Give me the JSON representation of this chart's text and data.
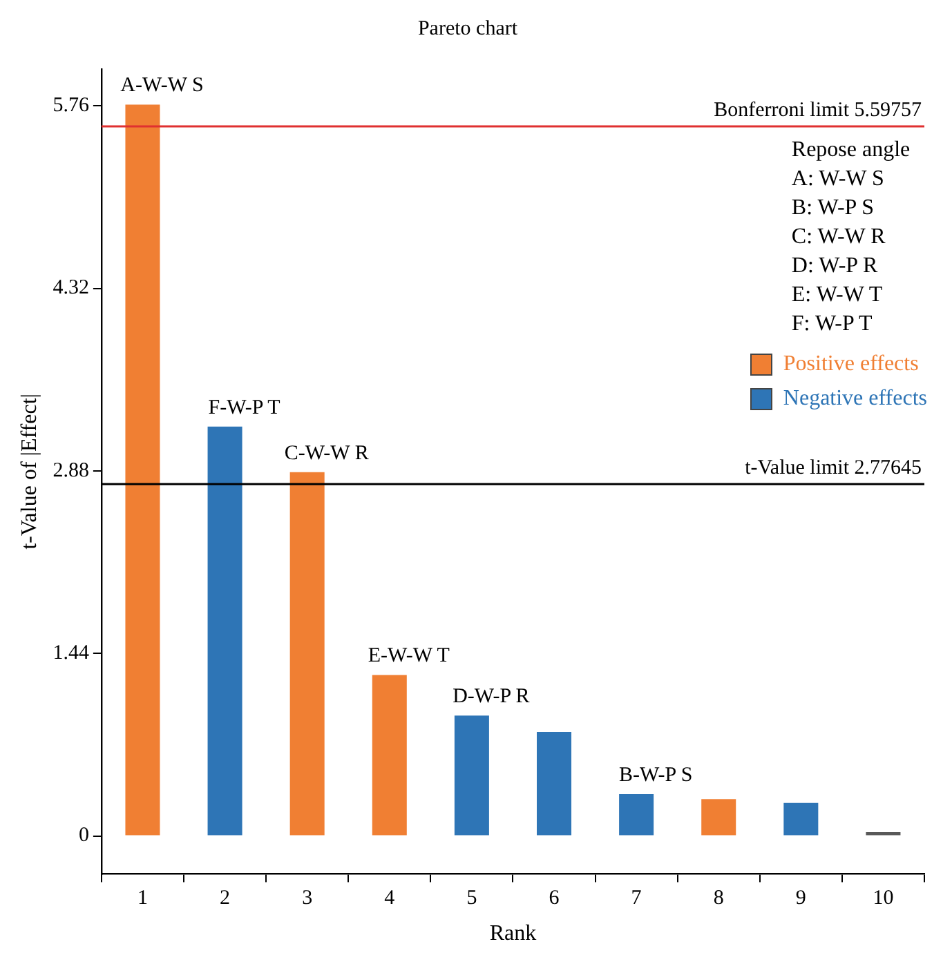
{
  "chart_data": {
    "type": "bar",
    "title": "Pareto chart",
    "xlabel": "Rank",
    "ylabel": "t-Value of |Effect|",
    "categories": [
      "1",
      "2",
      "3",
      "4",
      "5",
      "6",
      "7",
      "8",
      "9",
      "10"
    ],
    "stacked": true,
    "series": [
      {
        "name": "Positive effects",
        "color": "#f07f33",
        "values": [
          5.77,
          null,
          2.87,
          1.27,
          null,
          null,
          null,
          0.29,
          null,
          null
        ]
      },
      {
        "name": "Negative effects",
        "color": "#2e75b6",
        "values": [
          null,
          3.23,
          null,
          null,
          0.95,
          0.82,
          0.33,
          null,
          0.26,
          null
        ]
      },
      {
        "color": "#595959",
        "values": [
          null,
          null,
          null,
          null,
          null,
          null,
          null,
          null,
          null,
          0.03
        ]
      }
    ],
    "ylim": [
      -0.3,
      6.05
    ],
    "yticks": [
      0,
      1.44,
      2.88,
      4.32,
      5.76
    ],
    "grid": false,
    "ref_lines": [
      {
        "axis": "y",
        "value": 5.59757,
        "label": "Bonferroni limit 5.59757",
        "color": "#e03030"
      },
      {
        "axis": "y",
        "value": 2.77645,
        "label": "t-Value limit 2.77645",
        "color": "#000000"
      }
    ],
    "legend": "top right",
    "legend_title": "Repose angle",
    "annotations": [
      {
        "text": "A-W-W S",
        "x": "1",
        "y": 5.77
      },
      {
        "text": "F-W-P T",
        "x": "2",
        "y": 3.23
      },
      {
        "text": "C-W-W R",
        "x": "3",
        "y": 2.87
      },
      {
        "text": "E-W-W T",
        "x": "4",
        "y": 1.27
      },
      {
        "text": "D-W-P R",
        "x": "5",
        "y": 0.95
      },
      {
        "text": "B-W-P S",
        "x": "7",
        "y": 0.33
      },
      "A: W-W S",
      "B: W-P S",
      "C: W-W R",
      "D: W-P R",
      "E: W-W T",
      "F: W-P T"
    ]
  }
}
